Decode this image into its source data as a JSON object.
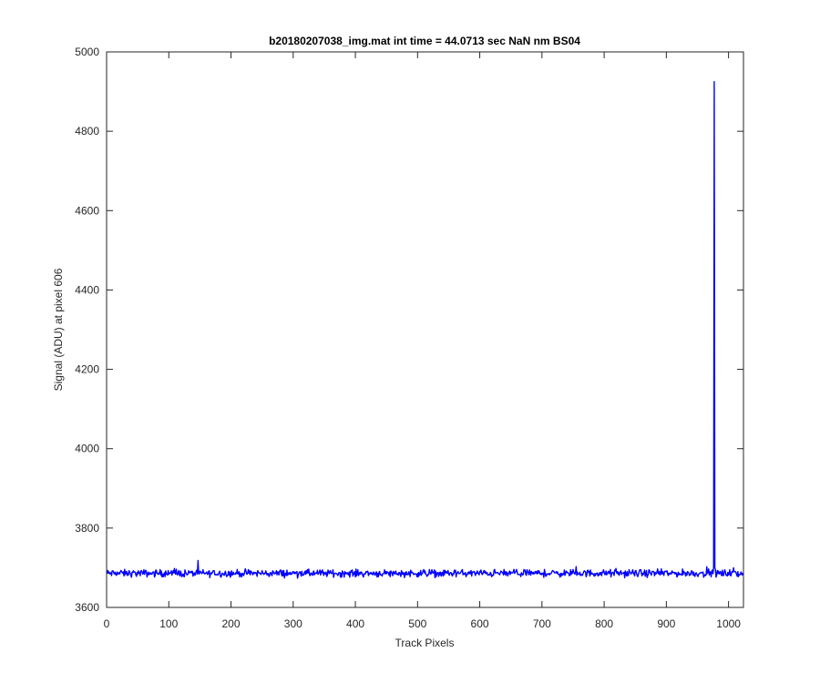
{
  "chart_data": {
    "type": "line",
    "title": "b20180207038_img.mat int time = 44.0713 sec  NaN nm BS04",
    "xlabel": "Track Pixels",
    "ylabel": "Signal (ADU) at pixel 606",
    "xlim": [
      0,
      1024
    ],
    "ylim": [
      3600,
      5000
    ],
    "xticks": [
      0,
      100,
      200,
      300,
      400,
      500,
      600,
      700,
      800,
      900,
      1000
    ],
    "yticks": [
      3600,
      3800,
      4000,
      4200,
      4400,
      4600,
      4800,
      5000
    ],
    "grid": false,
    "series": [
      {
        "color": "#0000ff",
        "baseline": 3686,
        "noise_amplitude": 9,
        "n_points": 1024,
        "peak": {
          "x": 977,
          "y": 4925
        },
        "x": [
          0,
          50,
          100,
          150,
          200,
          250,
          300,
          345,
          400,
          450,
          500,
          550,
          595,
          650,
          700,
          750,
          800,
          850,
          900,
          950,
          970,
          975,
          977,
          979,
          985,
          1000,
          1023
        ],
        "y": [
          3688,
          3687,
          3688,
          3686,
          3687,
          3686,
          3687,
          3684,
          3687,
          3690,
          3686,
          3688,
          3690,
          3686,
          3687,
          3686,
          3685,
          3687,
          3688,
          3690,
          3700,
          3710,
          4925,
          3700,
          3684,
          3688,
          3688
        ]
      }
    ]
  },
  "colors": {
    "line": "#0000ff",
    "axes": "#262626",
    "background": "#ffffff"
  }
}
